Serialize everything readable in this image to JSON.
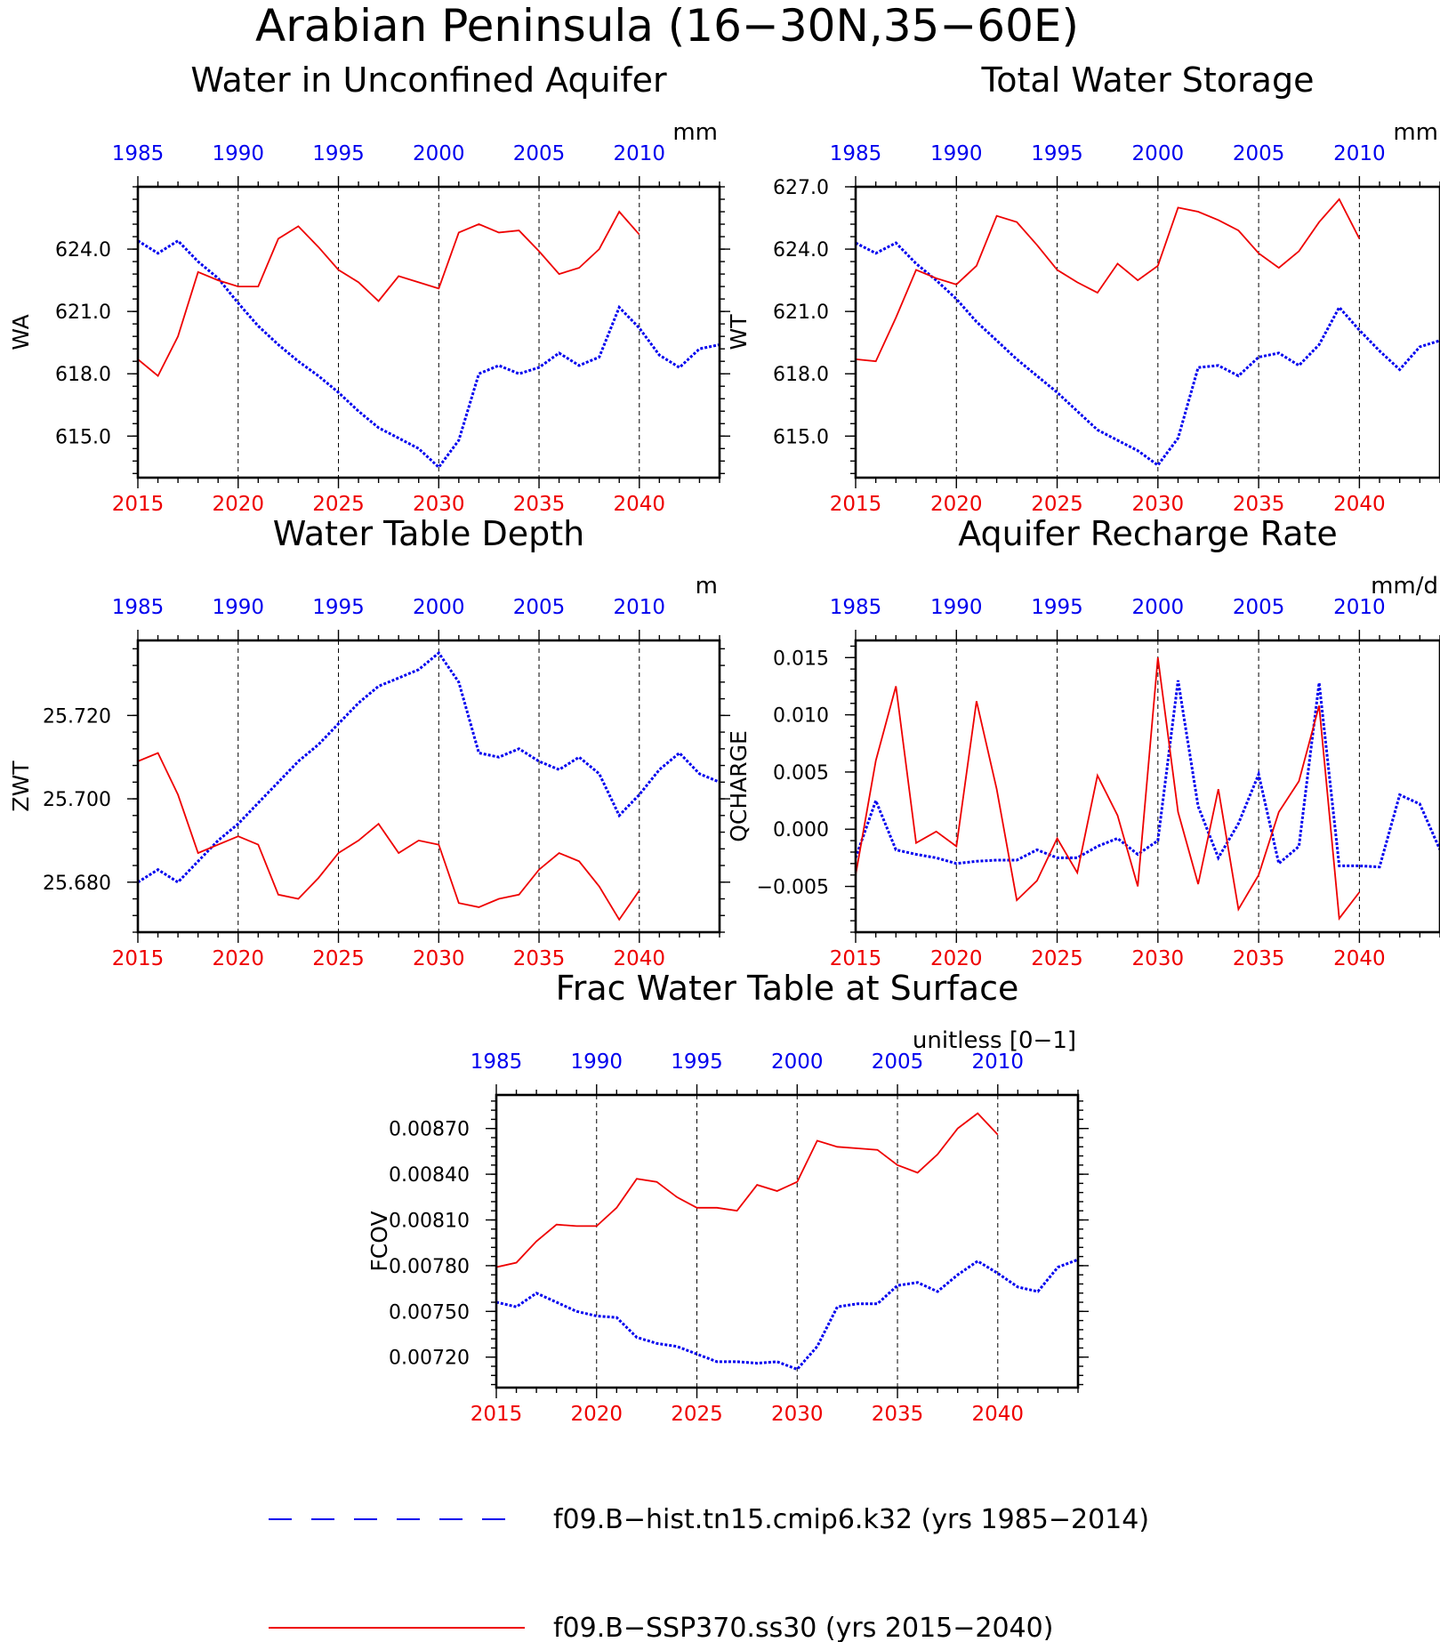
{
  "page": {
    "title": "Arabian Peninsula (16−30N,35−60E)"
  },
  "colors": {
    "hist": "#0000ee",
    "ssp": "#ee0000",
    "axis": "#000000"
  },
  "legend": {
    "hist_label": "f09.B−hist.tn15.cmip6.k32 (yrs 1985−2014)",
    "ssp_label": "f09.B−SSP370.ss30 (yrs 2015−2040)"
  },
  "chart_data": [
    {
      "type": "line",
      "title": "Water in Unconfined Aquifer",
      "ylabel": "WA",
      "units": "mm",
      "ylim": [
        613.0,
        627.0
      ],
      "yticks": [
        "615.0",
        "618.0",
        "621.0",
        "624.0"
      ],
      "ytick_values": [
        615,
        618,
        621,
        624
      ],
      "ytick_minor_step": 0.6,
      "x_top_ticks": [
        "1985",
        "1990",
        "1995",
        "2000",
        "2005",
        "2010"
      ],
      "x_bottom_ticks": [
        "2015",
        "2020",
        "2025",
        "2030",
        "2035",
        "2040"
      ],
      "grid": "dashed vertical lines at major x ticks",
      "series": [
        {
          "name": "f09.B−hist.tn15.cmip6.k32",
          "x": [
            1985,
            1986,
            1987,
            1988,
            1989,
            1990,
            1991,
            1992,
            1993,
            1994,
            1995,
            1996,
            1997,
            1998,
            1999,
            2000,
            2001,
            2002,
            2003,
            2004,
            2005,
            2006,
            2007,
            2008,
            2009,
            2010,
            2011,
            2012,
            2013,
            2014
          ],
          "values": [
            624.4,
            623.8,
            624.4,
            623.4,
            622.6,
            621.4,
            620.3,
            619.4,
            618.6,
            617.9,
            617.1,
            616.2,
            615.4,
            614.9,
            614.4,
            613.5,
            614.8,
            618.0,
            618.4,
            618.0,
            618.3,
            619.0,
            618.4,
            618.8,
            621.2,
            620.2,
            618.9,
            618.3,
            619.2,
            619.4
          ]
        },
        {
          "name": "f09.B−SSP370.ss30",
          "x": [
            2015,
            2016,
            2017,
            2018,
            2019,
            2020,
            2021,
            2022,
            2023,
            2024,
            2025,
            2026,
            2027,
            2028,
            2029,
            2030,
            2031,
            2032,
            2033,
            2034,
            2035,
            2036,
            2037,
            2038,
            2039,
            2040
          ],
          "values": [
            618.7,
            617.9,
            619.8,
            622.9,
            622.5,
            622.2,
            622.2,
            624.5,
            625.1,
            624.1,
            623.0,
            622.4,
            621.5,
            622.7,
            622.4,
            622.1,
            624.8,
            625.2,
            624.8,
            624.9,
            623.9,
            622.8,
            623.1,
            624.0,
            625.8,
            624.7
          ]
        }
      ]
    },
    {
      "type": "line",
      "title": "Total Water Storage",
      "ylabel": "WT",
      "units": "mm",
      "ylim": [
        613.0,
        627.0
      ],
      "yticks": [
        "615.0",
        "618.0",
        "621.0",
        "624.0",
        "627.0"
      ],
      "ytick_values": [
        615,
        618,
        621,
        624,
        627
      ],
      "ytick_minor_step": 0.6,
      "x_top_ticks": [
        "1985",
        "1990",
        "1995",
        "2000",
        "2005",
        "2010"
      ],
      "x_bottom_ticks": [
        "2015",
        "2020",
        "2025",
        "2030",
        "2035",
        "2040"
      ],
      "grid": "dashed vertical lines at major x ticks",
      "series": [
        {
          "name": "f09.B−hist.tn15.cmip6.k32",
          "x": [
            1985,
            1986,
            1987,
            1988,
            1989,
            1990,
            1991,
            1992,
            1993,
            1994,
            1995,
            1996,
            1997,
            1998,
            1999,
            2000,
            2001,
            2002,
            2003,
            2004,
            2005,
            2006,
            2007,
            2008,
            2009,
            2010,
            2011,
            2012,
            2013,
            2014
          ],
          "values": [
            624.3,
            623.8,
            624.3,
            623.3,
            622.5,
            621.6,
            620.5,
            619.6,
            618.7,
            617.9,
            617.1,
            616.2,
            615.3,
            614.8,
            614.3,
            613.6,
            614.9,
            618.3,
            618.4,
            617.9,
            618.8,
            619.0,
            618.4,
            619.4,
            621.2,
            620.1,
            619.1,
            618.2,
            619.3,
            619.6
          ]
        },
        {
          "name": "f09.B−SSP370.ss30",
          "x": [
            2015,
            2016,
            2017,
            2018,
            2019,
            2020,
            2021,
            2022,
            2023,
            2024,
            2025,
            2026,
            2027,
            2028,
            2029,
            2030,
            2031,
            2032,
            2033,
            2034,
            2035,
            2036,
            2037,
            2038,
            2039,
            2040
          ],
          "values": [
            618.7,
            618.6,
            620.7,
            623.0,
            622.6,
            622.3,
            623.2,
            625.6,
            625.3,
            624.2,
            623.0,
            622.4,
            621.9,
            623.3,
            622.5,
            623.2,
            626.0,
            625.8,
            625.4,
            624.9,
            623.8,
            623.1,
            623.9,
            625.3,
            626.4,
            624.5
          ]
        }
      ]
    },
    {
      "type": "line",
      "title": "Water Table Depth",
      "ylabel": "ZWT",
      "units": "m",
      "ylim": [
        25.668,
        25.738
      ],
      "yticks": [
        "25.680",
        "25.700",
        "25.720"
      ],
      "ytick_values": [
        25.68,
        25.7,
        25.72
      ],
      "ytick_minor_step": 0.004,
      "x_top_ticks": [
        "1985",
        "1990",
        "1995",
        "2000",
        "2005",
        "2010"
      ],
      "x_bottom_ticks": [
        "2015",
        "2020",
        "2025",
        "2030",
        "2035",
        "2040"
      ],
      "grid": "dashed vertical lines at major x ticks",
      "series": [
        {
          "name": "f09.B−hist.tn15.cmip6.k32",
          "x": [
            1985,
            1986,
            1987,
            1988,
            1989,
            1990,
            1991,
            1992,
            1993,
            1994,
            1995,
            1996,
            1997,
            1998,
            1999,
            2000,
            2001,
            2002,
            2003,
            2004,
            2005,
            2006,
            2007,
            2008,
            2009,
            2010,
            2011,
            2012,
            2013,
            2014
          ],
          "values": [
            25.68,
            25.683,
            25.68,
            25.685,
            25.69,
            25.694,
            25.699,
            25.704,
            25.709,
            25.713,
            25.718,
            25.723,
            25.727,
            25.729,
            25.731,
            25.735,
            25.728,
            25.711,
            25.71,
            25.712,
            25.709,
            25.707,
            25.71,
            25.706,
            25.696,
            25.701,
            25.707,
            25.711,
            25.706,
            25.704
          ]
        },
        {
          "name": "f09.B−SSP370.ss30",
          "x": [
            2015,
            2016,
            2017,
            2018,
            2019,
            2020,
            2021,
            2022,
            2023,
            2024,
            2025,
            2026,
            2027,
            2028,
            2029,
            2030,
            2031,
            2032,
            2033,
            2034,
            2035,
            2036,
            2037,
            2038,
            2039,
            2040
          ],
          "values": [
            25.709,
            25.711,
            25.701,
            25.687,
            25.689,
            25.691,
            25.689,
            25.677,
            25.676,
            25.681,
            25.687,
            25.69,
            25.694,
            25.687,
            25.69,
            25.689,
            25.675,
            25.674,
            25.676,
            25.677,
            25.683,
            25.687,
            25.685,
            25.679,
            25.671,
            25.678
          ]
        }
      ]
    },
    {
      "type": "line",
      "title": "Aquifer Recharge Rate",
      "ylabel": "QCHARGE",
      "units": "mm/d",
      "ylim": [
        -0.009,
        0.0165
      ],
      "yticks": [
        "−0.005",
        "0.000",
        "0.005",
        "0.010",
        "0.015"
      ],
      "ytick_values": [
        -0.005,
        0.0,
        0.005,
        0.01,
        0.015
      ],
      "ytick_minor_step": 0.001,
      "x_top_ticks": [
        "1985",
        "1990",
        "1995",
        "2000",
        "2005",
        "2010"
      ],
      "x_bottom_ticks": [
        "2015",
        "2020",
        "2025",
        "2030",
        "2035",
        "2040"
      ],
      "grid": "dashed vertical lines at major x ticks",
      "series": [
        {
          "name": "f09.B−hist.tn15.cmip6.k32",
          "x": [
            1985,
            1986,
            1987,
            1988,
            1989,
            1990,
            1991,
            1992,
            1993,
            1994,
            1995,
            1996,
            1997,
            1998,
            1999,
            2000,
            2001,
            2002,
            2003,
            2004,
            2005,
            2006,
            2007,
            2008,
            2009,
            2010,
            2011,
            2012,
            2013,
            2014
          ],
          "values": [
            -0.0025,
            0.0025,
            -0.0018,
            -0.0022,
            -0.0025,
            -0.003,
            -0.0028,
            -0.0027,
            -0.0027,
            -0.0018,
            -0.0025,
            -0.0025,
            -0.0015,
            -0.0008,
            -0.0022,
            -0.001,
            0.013,
            0.002,
            -0.0025,
            0.0005,
            0.0048,
            -0.003,
            -0.0015,
            0.0128,
            -0.0032,
            -0.0032,
            -0.0033,
            0.003,
            0.0022,
            -0.0018
          ]
        },
        {
          "name": "f09.B−SSP370.ss30",
          "x": [
            2015,
            2016,
            2017,
            2018,
            2019,
            2020,
            2021,
            2022,
            2023,
            2024,
            2025,
            2026,
            2027,
            2028,
            2029,
            2030,
            2031,
            2032,
            2033,
            2034,
            2035,
            2036,
            2037,
            2038,
            2039,
            2040
          ],
          "values": [
            -0.004,
            0.006,
            0.0125,
            -0.0012,
            -0.0002,
            -0.0015,
            0.0112,
            0.0035,
            -0.0062,
            -0.0045,
            -0.0008,
            -0.0038,
            0.0047,
            0.0012,
            -0.005,
            0.015,
            0.0015,
            -0.0048,
            0.0035,
            -0.007,
            -0.004,
            0.0015,
            0.0042,
            0.0108,
            -0.0078,
            -0.0055
          ]
        }
      ]
    },
    {
      "type": "line",
      "title": "Frac Water Table at Surface",
      "ylabel": "FCOV",
      "units": "unitless [0−1]",
      "ylim": [
        0.007,
        0.00892
      ],
      "yticks": [
        "0.00720",
        "0.00750",
        "0.00780",
        "0.00810",
        "0.00840",
        "0.00870"
      ],
      "ytick_values": [
        0.0072,
        0.0075,
        0.0078,
        0.0081,
        0.0084,
        0.0087
      ],
      "ytick_minor_step": 6e-05,
      "x_top_ticks": [
        "1985",
        "1990",
        "1995",
        "2000",
        "2005",
        "2010"
      ],
      "x_bottom_ticks": [
        "2015",
        "2020",
        "2025",
        "2030",
        "2035",
        "2040"
      ],
      "grid": "dashed vertical lines at major x ticks",
      "series": [
        {
          "name": "f09.B−hist.tn15.cmip6.k32",
          "x": [
            1985,
            1986,
            1987,
            1988,
            1989,
            1990,
            1991,
            1992,
            1993,
            1994,
            1995,
            1996,
            1997,
            1998,
            1999,
            2000,
            2001,
            2002,
            2003,
            2004,
            2005,
            2006,
            2007,
            2008,
            2009,
            2010,
            2011,
            2012,
            2013,
            2014
          ],
          "values": [
            0.00756,
            0.00753,
            0.00762,
            0.00756,
            0.0075,
            0.00747,
            0.00746,
            0.00733,
            0.00729,
            0.00727,
            0.00722,
            0.00717,
            0.00717,
            0.00716,
            0.00717,
            0.00712,
            0.00727,
            0.00753,
            0.00755,
            0.00755,
            0.00767,
            0.00769,
            0.00763,
            0.00774,
            0.00783,
            0.00775,
            0.00766,
            0.00763,
            0.00779,
            0.00784
          ]
        },
        {
          "name": "f09.B−SSP370.ss30",
          "x": [
            2015,
            2016,
            2017,
            2018,
            2019,
            2020,
            2021,
            2022,
            2023,
            2024,
            2025,
            2026,
            2027,
            2028,
            2029,
            2030,
            2031,
            2032,
            2033,
            2034,
            2035,
            2036,
            2037,
            2038,
            2039,
            2040
          ],
          "values": [
            0.00779,
            0.00782,
            0.00796,
            0.00807,
            0.00806,
            0.00806,
            0.00818,
            0.00837,
            0.00835,
            0.00825,
            0.00818,
            0.00818,
            0.00816,
            0.00833,
            0.00829,
            0.00835,
            0.00862,
            0.00858,
            0.00857,
            0.00856,
            0.00846,
            0.00841,
            0.00853,
            0.0087,
            0.0088,
            0.00866
          ]
        }
      ]
    }
  ]
}
